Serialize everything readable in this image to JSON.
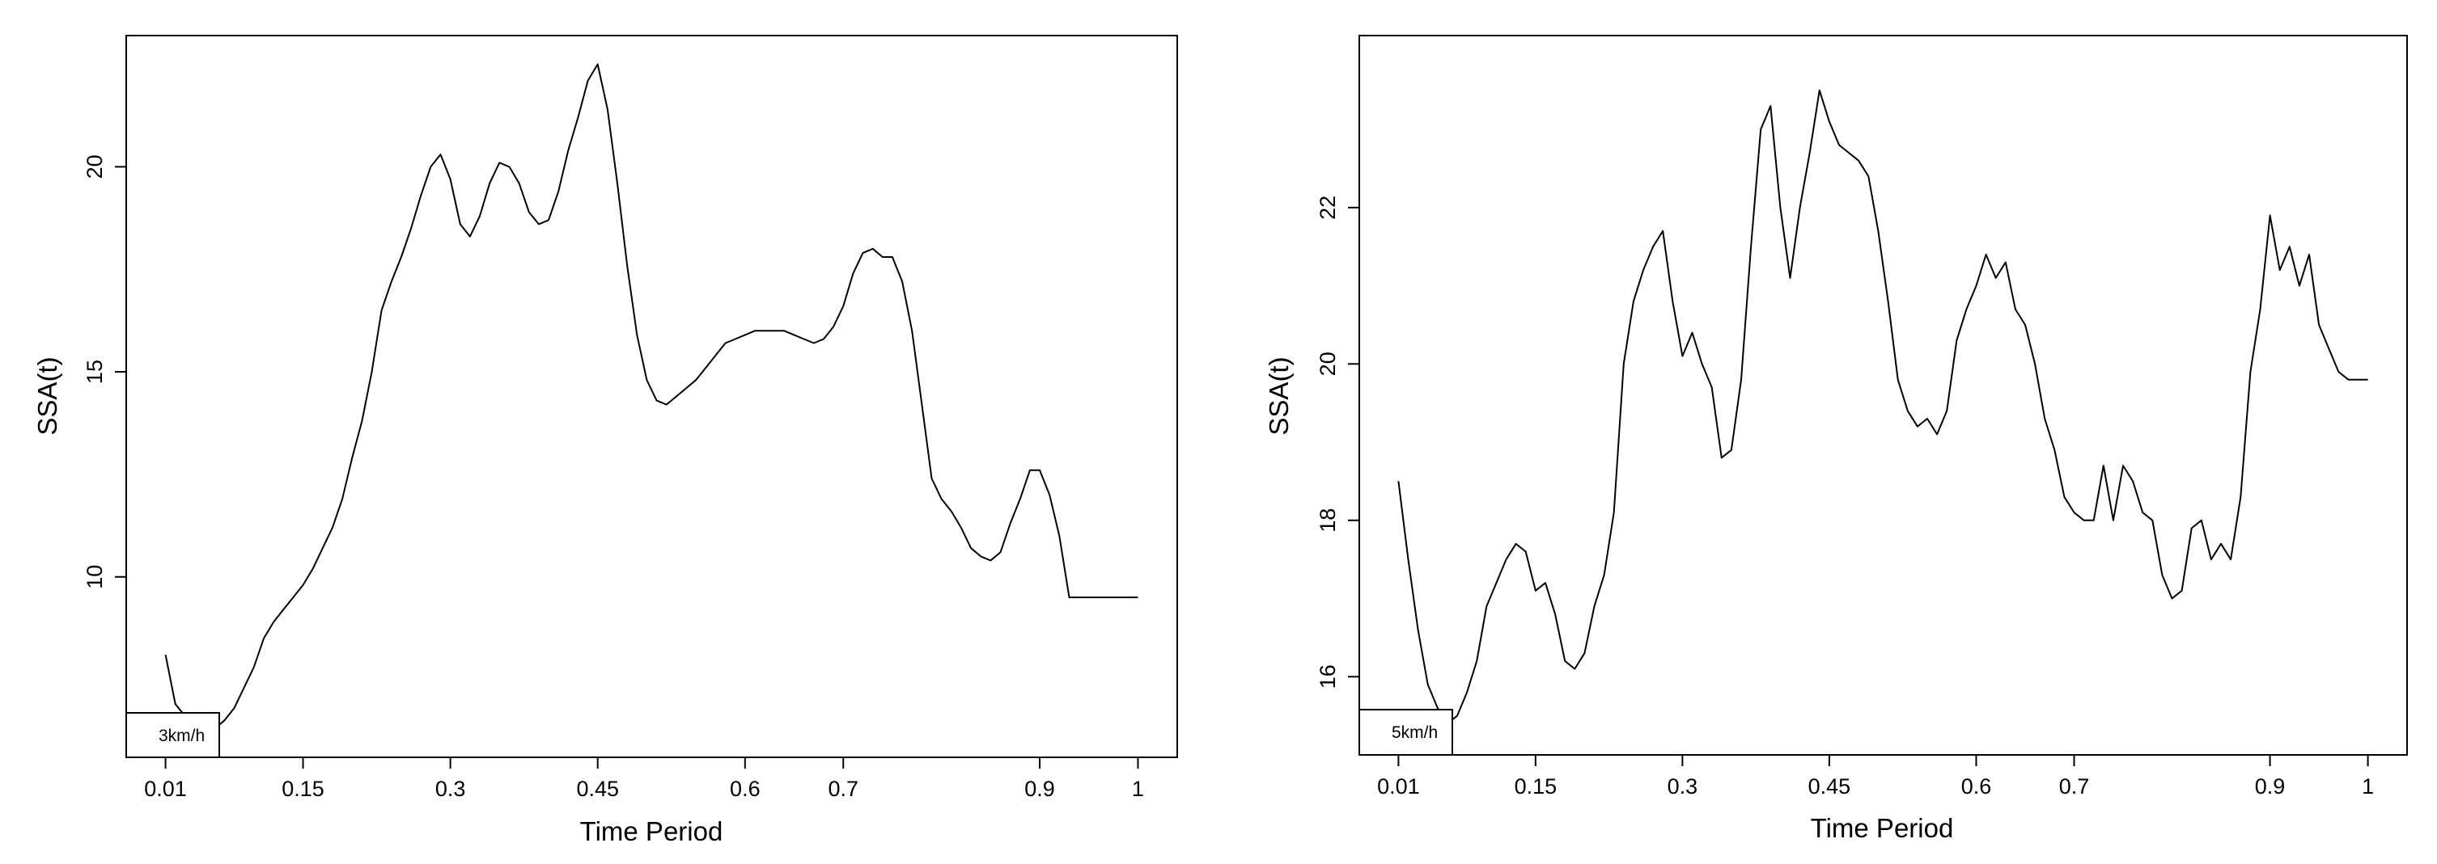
{
  "chart_data": [
    {
      "type": "line",
      "title": "",
      "xlabel": "Time Period",
      "ylabel": "SSA(t)",
      "legend": {
        "text": "3km/h",
        "position": "bottom-left"
      },
      "xticks": [
        {
          "label": "0.01",
          "x": 0.01
        },
        {
          "label": "0.15",
          "x": 0.15
        },
        {
          "label": "0.3",
          "x": 0.3
        },
        {
          "label": "0.45",
          "x": 0.45
        },
        {
          "label": "0.6",
          "x": 0.6
        },
        {
          "label": "0.7",
          "x": 0.7
        },
        {
          "label": "0.9",
          "x": 0.9
        },
        {
          "label": "1",
          "x": 1.0
        }
      ],
      "yticks": [
        10,
        15,
        20
      ],
      "xlim": [
        -0.03,
        1.04
      ],
      "ylim": [
        5.6,
        23.2
      ],
      "grid": false,
      "series": [
        {
          "x": [
            0.01,
            0.02,
            0.03,
            0.04,
            0.05,
            0.06,
            0.07,
            0.08,
            0.09,
            0.1,
            0.11,
            0.12,
            0.13,
            0.14,
            0.15,
            0.16,
            0.17,
            0.18,
            0.19,
            0.2,
            0.21,
            0.22,
            0.23,
            0.24,
            0.25,
            0.26,
            0.27,
            0.28,
            0.29,
            0.3,
            0.31,
            0.32,
            0.33,
            0.34,
            0.35,
            0.36,
            0.37,
            0.38,
            0.39,
            0.4,
            0.41,
            0.42,
            0.43,
            0.44,
            0.45,
            0.46,
            0.47,
            0.48,
            0.49,
            0.5,
            0.51,
            0.52,
            0.53,
            0.54,
            0.55,
            0.56,
            0.57,
            0.58,
            0.59,
            0.6,
            0.61,
            0.62,
            0.63,
            0.64,
            0.65,
            0.66,
            0.67,
            0.68,
            0.69,
            0.7,
            0.71,
            0.72,
            0.73,
            0.74,
            0.75,
            0.76,
            0.77,
            0.78,
            0.79,
            0.8,
            0.81,
            0.82,
            0.83,
            0.84,
            0.85,
            0.86,
            0.87,
            0.88,
            0.89,
            0.9,
            0.91,
            0.92,
            0.93,
            0.94,
            0.95,
            0.96,
            0.97,
            0.98,
            0.99,
            1.0
          ],
          "y": [
            8.1,
            6.9,
            6.6,
            6.4,
            6.3,
            6.3,
            6.5,
            6.8,
            7.3,
            7.8,
            8.5,
            8.9,
            9.2,
            9.5,
            9.8,
            10.2,
            10.7,
            11.2,
            11.9,
            12.9,
            13.8,
            15.0,
            16.5,
            17.2,
            17.8,
            18.5,
            19.3,
            20.0,
            20.3,
            19.7,
            18.6,
            18.3,
            18.8,
            19.6,
            20.1,
            20.0,
            19.6,
            18.9,
            18.6,
            18.7,
            19.4,
            20.4,
            21.2,
            22.1,
            22.5,
            21.4,
            19.6,
            17.6,
            15.9,
            14.8,
            14.3,
            14.2,
            14.4,
            14.6,
            14.8,
            15.1,
            15.4,
            15.7,
            15.8,
            15.9,
            16.0,
            16.0,
            16.0,
            16.0,
            15.9,
            15.8,
            15.7,
            15.8,
            16.1,
            16.6,
            17.4,
            17.9,
            18.0,
            17.8,
            17.8,
            17.2,
            16.0,
            14.2,
            12.4,
            11.9,
            11.6,
            11.2,
            10.7,
            10.5,
            10.4,
            10.6,
            11.3,
            11.9,
            12.6,
            12.6,
            12.0,
            11.0,
            9.5,
            9.5,
            9.5,
            9.5,
            9.5,
            9.5,
            9.5,
            9.5
          ]
        }
      ]
    },
    {
      "type": "line",
      "title": "",
      "xlabel": "Time Period",
      "ylabel": "SSA(t)",
      "legend": {
        "text": "5km/h",
        "position": "bottom-left"
      },
      "xticks": [
        {
          "label": "0.01",
          "x": 0.01
        },
        {
          "label": "0.15",
          "x": 0.15
        },
        {
          "label": "0.3",
          "x": 0.3
        },
        {
          "label": "0.45",
          "x": 0.45
        },
        {
          "label": "0.6",
          "x": 0.6
        },
        {
          "label": "0.7",
          "x": 0.7
        },
        {
          "label": "0.9",
          "x": 0.9
        },
        {
          "label": "1",
          "x": 1.0
        }
      ],
      "yticks": [
        16,
        18,
        20,
        22
      ],
      "xlim": [
        -0.03,
        1.04
      ],
      "ylim": [
        15.0,
        24.2
      ],
      "grid": false,
      "series": [
        {
          "x": [
            0.01,
            0.02,
            0.03,
            0.04,
            0.05,
            0.06,
            0.07,
            0.08,
            0.09,
            0.1,
            0.11,
            0.12,
            0.13,
            0.14,
            0.15,
            0.16,
            0.17,
            0.18,
            0.19,
            0.2,
            0.21,
            0.22,
            0.23,
            0.24,
            0.25,
            0.26,
            0.27,
            0.28,
            0.29,
            0.3,
            0.31,
            0.32,
            0.33,
            0.34,
            0.35,
            0.36,
            0.37,
            0.38,
            0.39,
            0.4,
            0.41,
            0.42,
            0.43,
            0.44,
            0.45,
            0.46,
            0.47,
            0.48,
            0.49,
            0.5,
            0.51,
            0.52,
            0.53,
            0.54,
            0.55,
            0.56,
            0.57,
            0.58,
            0.59,
            0.6,
            0.61,
            0.62,
            0.63,
            0.64,
            0.65,
            0.66,
            0.67,
            0.68,
            0.69,
            0.7,
            0.71,
            0.72,
            0.73,
            0.74,
            0.75,
            0.76,
            0.77,
            0.78,
            0.79,
            0.8,
            0.81,
            0.82,
            0.83,
            0.84,
            0.85,
            0.86,
            0.87,
            0.88,
            0.89,
            0.9,
            0.91,
            0.92,
            0.93,
            0.94,
            0.95,
            0.96,
            0.97,
            0.98,
            0.99,
            1.0
          ],
          "y": [
            18.5,
            17.5,
            16.6,
            15.9,
            15.6,
            15.4,
            15.5,
            15.8,
            16.2,
            16.9,
            17.2,
            17.5,
            17.7,
            17.6,
            17.1,
            17.2,
            16.8,
            16.2,
            16.1,
            16.3,
            16.9,
            17.3,
            18.1,
            20.0,
            20.8,
            21.2,
            21.5,
            21.7,
            20.8,
            20.1,
            20.4,
            20.0,
            19.7,
            18.8,
            18.9,
            19.8,
            21.5,
            23.0,
            23.3,
            22.0,
            21.1,
            22.0,
            22.7,
            23.5,
            23.1,
            22.8,
            22.7,
            22.6,
            22.4,
            21.7,
            20.8,
            19.8,
            19.4,
            19.2,
            19.3,
            19.1,
            19.4,
            20.3,
            20.7,
            21.0,
            21.4,
            21.1,
            21.3,
            20.7,
            20.5,
            20.0,
            19.3,
            18.9,
            18.3,
            18.1,
            18.0,
            18.0,
            18.7,
            18.0,
            18.7,
            18.5,
            18.1,
            18.0,
            17.3,
            17.0,
            17.1,
            17.9,
            18.0,
            17.5,
            17.7,
            17.5,
            18.3,
            19.9,
            20.7,
            21.9,
            21.2,
            21.5,
            21.0,
            21.4,
            20.5,
            20.2,
            19.9,
            19.8,
            19.8,
            19.8
          ]
        }
      ]
    }
  ]
}
